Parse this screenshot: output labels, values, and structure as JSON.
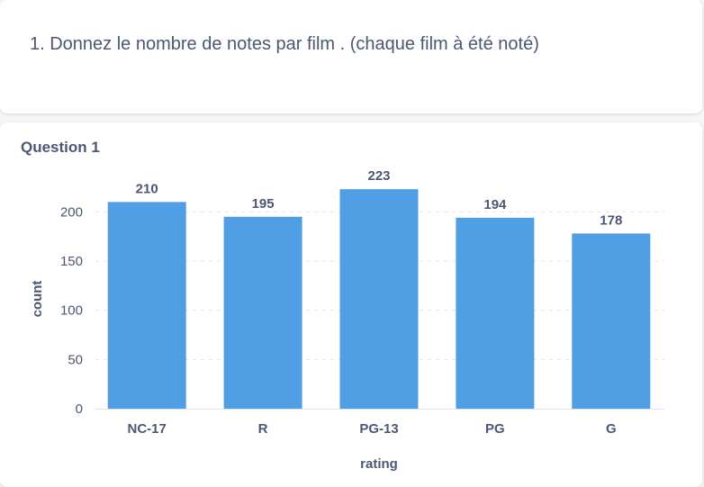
{
  "question_card": {
    "text": "1. Donnez le nombre de notes par film . (chaque film à été noté)"
  },
  "chart_card": {
    "title": "Question 1"
  },
  "chart_data": {
    "type": "bar",
    "categories": [
      "NC-17",
      "R",
      "PG-13",
      "PG",
      "G"
    ],
    "values": [
      210,
      195,
      223,
      194,
      178
    ],
    "xlabel": "rating",
    "ylabel": "count",
    "ylim": [
      0,
      225
    ],
    "yticks": [
      0,
      50,
      100,
      150,
      200
    ],
    "grid": true,
    "bar_color": "#509ee3"
  }
}
